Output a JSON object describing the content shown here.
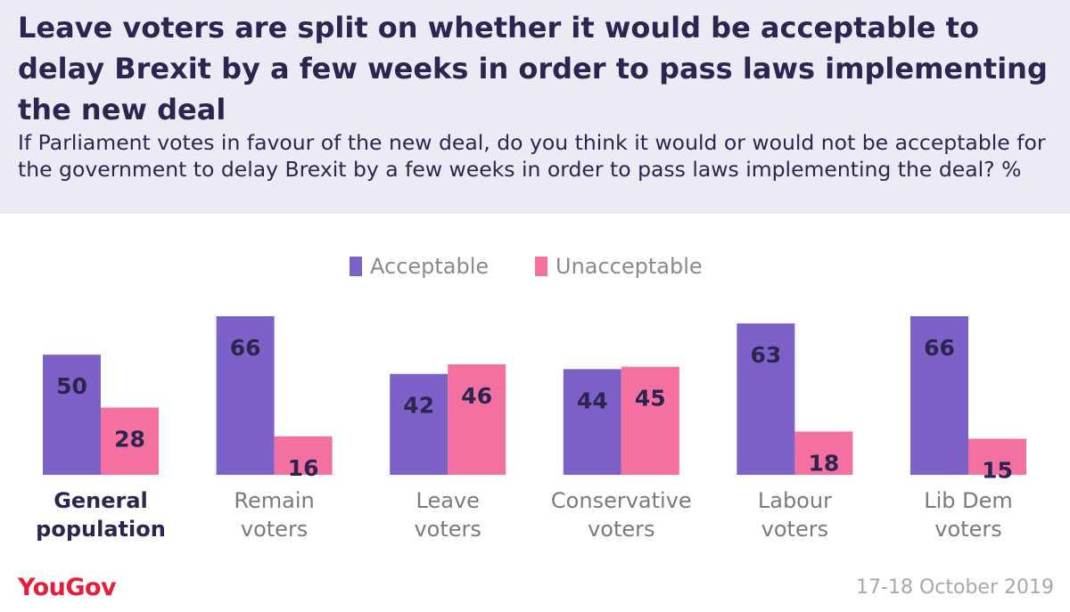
{
  "header": {
    "title": "Leave voters are split on whether it would be acceptable to delay Brexit by a few weeks in order to pass laws implementing the new deal",
    "subtitle": "If Parliament votes in favour of the new deal, do you think it would or would not be acceptable for the government to delay Brexit by a few weeks in order to pass laws implementing the deal? %"
  },
  "footer": {
    "brand": "YouGov",
    "date": "17-18 October 2019"
  },
  "chart_data": {
    "type": "bar",
    "title": "Leave voters are split on whether it would be acceptable to delay Brexit by a few weeks in order to pass laws implementing the new deal",
    "categories": [
      [
        "General",
        "population"
      ],
      [
        "Remain",
        "voters"
      ],
      [
        "Leave",
        "voters"
      ],
      [
        "Conservative",
        "voters"
      ],
      [
        "Labour",
        "voters"
      ],
      [
        "Lib Dem",
        "voters"
      ]
    ],
    "emphasized_category": 0,
    "series": [
      {
        "name": "Acceptable",
        "color": "#7E61C8",
        "values": [
          50,
          66,
          42,
          44,
          63,
          66
        ]
      },
      {
        "name": "Unacceptable",
        "color": "#F470A0",
        "values": [
          28,
          16,
          46,
          45,
          18,
          15
        ]
      }
    ],
    "value_label_color": "#2B2550",
    "xlabel": "",
    "ylabel": "%",
    "ylim": [
      0,
      66
    ],
    "legend_position": "top-center",
    "grid": false
  }
}
